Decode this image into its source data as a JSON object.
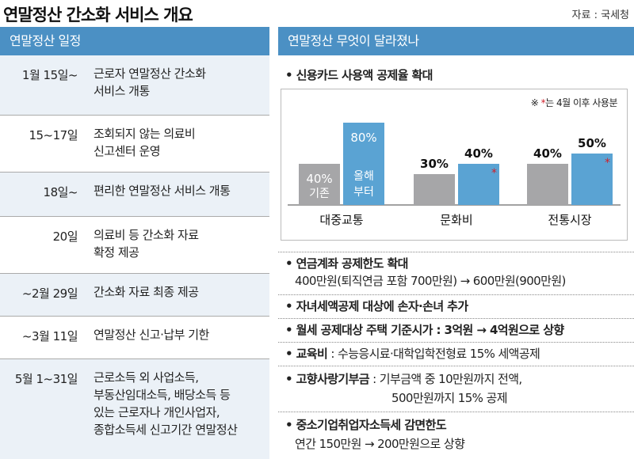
{
  "title": "연말정산 간소화 서비스 개요",
  "source": "자료 : 국세청",
  "left": {
    "heading": "연말정산 일정",
    "rows": [
      {
        "date": "1월 15일~",
        "desc": "근로자 연말정산 간소화\n서비스 개통"
      },
      {
        "date": "15~17일",
        "desc": "조회되지 않는 의료비\n신고센터 운영"
      },
      {
        "date": "18일~",
        "desc": "편리한 연말정산 서비스 개통"
      },
      {
        "date": "20일",
        "desc": "의료비 등  간소화 자료\n확정 제공"
      },
      {
        "date": "~2월 29일",
        "desc": "간소화 자료 최종 제공"
      },
      {
        "date": "~3월 11일",
        "desc": "연말정산 신고·납부 기한"
      },
      {
        "date": "5월 1~31일",
        "desc": "근로소득 외 사업소득,\n부동산임대소득, 배당소득 등\n있는 근로자나 개인사업자,\n종합소득세 신고기간 연말정산"
      }
    ]
  },
  "right": {
    "heading": "연말정산 무엇이 달라졌나",
    "card_title": "• 신용카드 사용액 공제율 확대",
    "note_mark": "※",
    "note_star": "*",
    "note_text": "는 4월 이후 사용분",
    "items": [
      {
        "line1_bold": "• 연금계좌 공제한도 확대",
        "line2": "400만원(퇴직연금 포함 700만원) → 600만원(900만원)"
      },
      {
        "line1_bold": "• 자녀세액공제 대상에 손자·손녀 추가"
      },
      {
        "line1_bold": "• 월세 공제대상 주택 기준시가 : 3억원 → 4억원으로 상향"
      },
      {
        "line1_bold": "• 교육비",
        "line1_rest": " : 수능응시료·대학입학전형료 15% 세액공제"
      },
      {
        "line1_bold": "• 고향사랑기부금",
        "line1_rest": " : 기부금액 중 10만원까지 전액,",
        "line2": "500만원까지 15% 공제"
      },
      {
        "line1_bold": "• 중소기업취업자소득세 감면한도",
        "line2": "연간 150만원 → 200만원으로 상향"
      }
    ]
  },
  "chart_data": {
    "type": "bar",
    "categories": [
      "대중교통",
      "문화비",
      "전통시장"
    ],
    "series": [
      {
        "values": [
          40,
          30,
          40
        ],
        "labels": [
          "40%",
          "30%",
          "40%"
        ]
      },
      {
        "values": [
          80,
          40,
          50
        ],
        "labels": [
          "80%",
          "40%",
          "50%"
        ]
      }
    ],
    "inbar_labels": {
      "before": "기존",
      "after": "올해\n부터"
    },
    "starred": [
      false,
      true,
      true
    ],
    "colors": {
      "before": "#a6a6a8",
      "after": "#5aa3d3",
      "star": "#d0202a"
    }
  }
}
